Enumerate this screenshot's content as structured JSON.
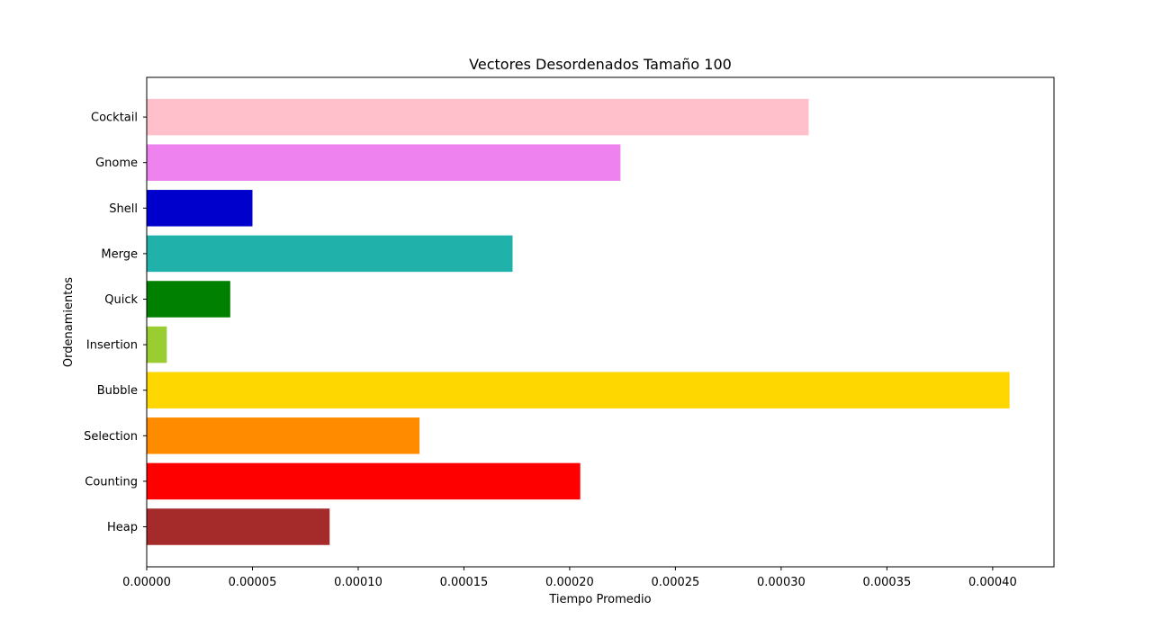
{
  "chart_data": {
    "type": "bar",
    "orientation": "horizontal",
    "title": "Vectores Desordenados Tamaño 100",
    "xlabel": "Tiempo Promedio",
    "ylabel": "Ordenamientos",
    "categories": [
      "Heap",
      "Counting",
      "Selection",
      "Bubble",
      "Insertion",
      "Quick",
      "Merge",
      "Shell",
      "Gnome",
      "Cocktail"
    ],
    "values": [
      8.65e-05,
      0.000205,
      0.000129,
      0.000408,
      9.5e-06,
      3.95e-05,
      0.000173,
      5e-05,
      0.000224,
      0.000313
    ],
    "colors": [
      "#a52a2a",
      "#ff0000",
      "#ff8c00",
      "#ffd700",
      "#9acd32",
      "#008000",
      "#20b2aa",
      "#0000cd",
      "#ee82ee",
      "#ffc0cb"
    ],
    "xticks": [
      "0.00000",
      "0.00005",
      "0.00010",
      "0.00015",
      "0.00020",
      "0.00025",
      "0.00030",
      "0.00035",
      "0.00040"
    ],
    "xtick_values": [
      0,
      5e-05,
      0.0001,
      0.00015,
      0.0002,
      0.00025,
      0.0003,
      0.00035,
      0.0004
    ],
    "xlim": [
      0,
      0.000429
    ],
    "grid": false,
    "legend": "none"
  }
}
